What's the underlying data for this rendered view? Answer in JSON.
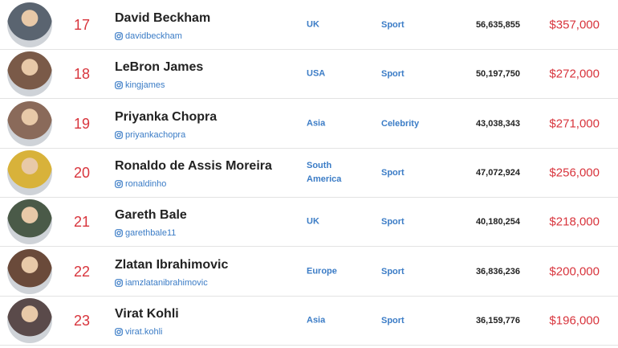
{
  "rows": [
    {
      "rank": "17",
      "name": "David Beckham",
      "handle": "davidbeckham",
      "region": "UK",
      "category": "Sport",
      "followers": "56,635,855",
      "price": "$357,000"
    },
    {
      "rank": "18",
      "name": "LeBron James",
      "handle": "kingjames",
      "region": "USA",
      "category": "Sport",
      "followers": "50,197,750",
      "price": "$272,000"
    },
    {
      "rank": "19",
      "name": "Priyanka Chopra",
      "handle": "priyankachopra",
      "region": "Asia",
      "category": "Celebrity",
      "followers": "43,038,343",
      "price": "$271,000"
    },
    {
      "rank": "20",
      "name": "Ronaldo de Assis Moreira",
      "handle": "ronaldinho",
      "region": "South America",
      "category": "Sport",
      "followers": "47,072,924",
      "price": "$256,000"
    },
    {
      "rank": "21",
      "name": "Gareth Bale",
      "handle": "garethbale11",
      "region": "UK",
      "category": "Sport",
      "followers": "40,180,254",
      "price": "$218,000"
    },
    {
      "rank": "22",
      "name": "Zlatan Ibrahimovic",
      "handle": "iamzlatanibrahimovic",
      "region": "Europe",
      "category": "Sport",
      "followers": "36,836,236",
      "price": "$200,000"
    },
    {
      "rank": "23",
      "name": "Virat Kohli",
      "handle": "virat.kohli",
      "region": "Asia",
      "category": "Sport",
      "followers": "36,159,776",
      "price": "$196,000"
    }
  ]
}
